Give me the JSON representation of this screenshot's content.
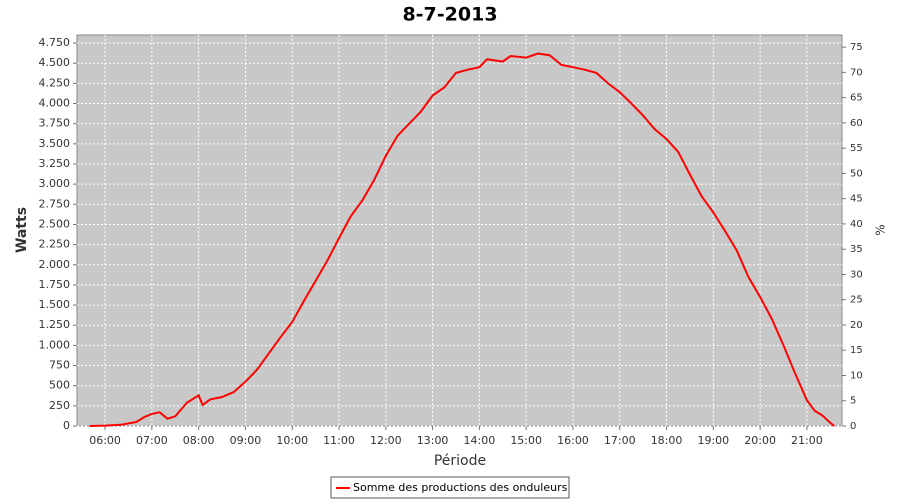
{
  "chart_data": {
    "type": "line",
    "title": "8-7-2013",
    "x_label": "Période",
    "y_label": "Watts",
    "y2_label": "%",
    "x": [
      "05:40",
      "06:00",
      "06:20",
      "06:40",
      "06:50",
      "07:00",
      "07:10",
      "07:20",
      "07:30",
      "07:45",
      "08:00",
      "08:05",
      "08:15",
      "08:30",
      "08:45",
      "09:00",
      "09:15",
      "09:30",
      "09:45",
      "10:00",
      "10:15",
      "10:30",
      "10:45",
      "11:00",
      "11:15",
      "11:30",
      "11:45",
      "12:00",
      "12:15",
      "12:30",
      "12:45",
      "13:00",
      "13:15",
      "13:30",
      "13:45",
      "14:00",
      "14:10",
      "14:30",
      "14:40",
      "15:00",
      "15:15",
      "15:30",
      "15:45",
      "16:00",
      "16:15",
      "16:30",
      "16:45",
      "17:00",
      "17:15",
      "17:30",
      "17:45",
      "18:00",
      "18:15",
      "18:30",
      "18:45",
      "19:00",
      "19:15",
      "19:30",
      "19:45",
      "20:00",
      "20:15",
      "20:30",
      "20:45",
      "21:00",
      "21:10",
      "21:20",
      "21:30",
      "21:35"
    ],
    "series": [
      {
        "name": "Somme des productions des onduleurs",
        "color": "#ff0000",
        "values": [
          0,
          5,
          15,
          50,
          110,
          150,
          170,
          90,
          120,
          290,
          380,
          260,
          330,
          360,
          420,
          550,
          700,
          900,
          1100,
          1290,
          1550,
          1800,
          2050,
          2330,
          2600,
          2800,
          3050,
          3350,
          3600,
          3750,
          3900,
          4100,
          4200,
          4380,
          4420,
          4450,
          4550,
          4520,
          4590,
          4570,
          4620,
          4600,
          4480,
          4450,
          4420,
          4380,
          4250,
          4140,
          4000,
          3850,
          3680,
          3560,
          3400,
          3120,
          2850,
          2650,
          2420,
          2180,
          1850,
          1600,
          1330,
          1000,
          650,
          320,
          190,
          130,
          40,
          0
        ]
      }
    ],
    "xlim": [
      "05:24",
      "21:45"
    ],
    "xticks": [
      "06:00",
      "07:00",
      "08:00",
      "09:00",
      "10:00",
      "11:00",
      "12:00",
      "13:00",
      "14:00",
      "15:00",
      "16:00",
      "17:00",
      "18:00",
      "19:00",
      "20:00",
      "21:00"
    ],
    "ylim": [
      0,
      4850
    ],
    "yticks": [
      0,
      250,
      500,
      750,
      {
        "value": 1000,
        "label": "1.000"
      },
      {
        "value": 1250,
        "label": "1.250"
      },
      {
        "value": 1500,
        "label": "1.500"
      },
      {
        "value": 1750,
        "label": "1.750"
      },
      {
        "value": 2000,
        "label": "2.000"
      },
      {
        "value": 2250,
        "label": "2.250"
      },
      {
        "value": 2500,
        "label": "2.500"
      },
      {
        "value": 2750,
        "label": "2.750"
      },
      {
        "value": 3000,
        "label": "3.000"
      },
      {
        "value": 3250,
        "label": "3.250"
      },
      {
        "value": 3500,
        "label": "3.500"
      },
      {
        "value": 3750,
        "label": "3.750"
      },
      {
        "value": 4000,
        "label": "4.000"
      },
      {
        "value": 4250,
        "label": "4.250"
      },
      {
        "value": 4500,
        "label": "4.500"
      },
      {
        "value": 4750,
        "label": "4.750"
      }
    ],
    "y2lim": [
      0,
      77.4
    ],
    "y2ticks": [
      0,
      5,
      10,
      15,
      20,
      25,
      30,
      35,
      40,
      45,
      50,
      55,
      60,
      65,
      70,
      75
    ],
    "grid": true,
    "legend": "bottom"
  }
}
